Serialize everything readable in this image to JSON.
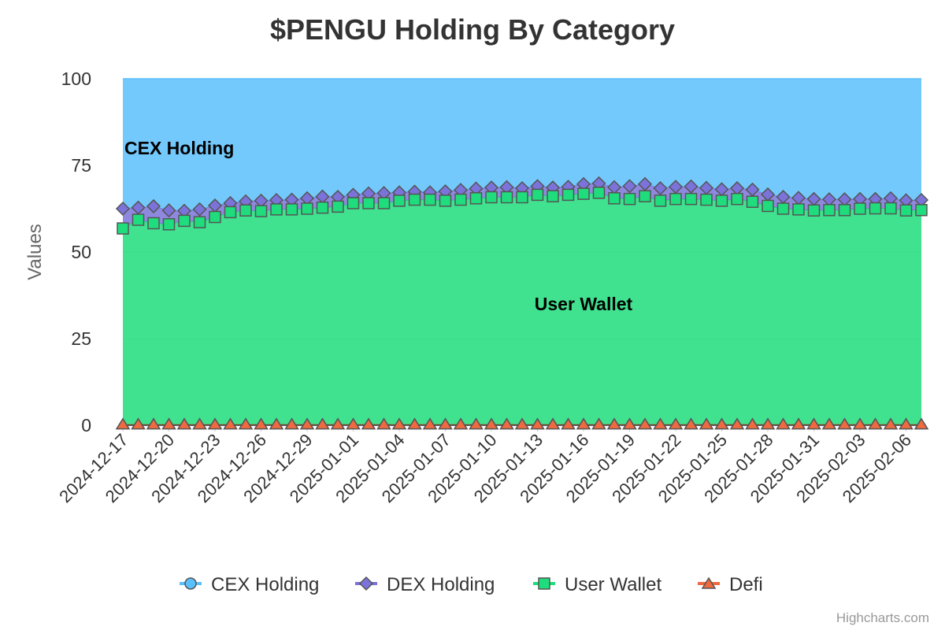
{
  "chart_data": {
    "type": "area",
    "stacking": "percent",
    "title": "$PENGU Holding By Category",
    "ylabel": "Values",
    "ylim": [
      0,
      100
    ],
    "yticks": [
      0,
      25,
      50,
      75,
      100
    ],
    "xlabel_every": 3,
    "dates": [
      "2024-12-17",
      "2024-12-18",
      "2024-12-19",
      "2024-12-20",
      "2024-12-21",
      "2024-12-22",
      "2024-12-23",
      "2024-12-24",
      "2024-12-25",
      "2024-12-26",
      "2024-12-27",
      "2024-12-28",
      "2024-12-29",
      "2024-12-30",
      "2024-12-31",
      "2025-01-01",
      "2025-01-02",
      "2025-01-03",
      "2025-01-04",
      "2025-01-05",
      "2025-01-06",
      "2025-01-07",
      "2025-01-08",
      "2025-01-09",
      "2025-01-10",
      "2025-01-11",
      "2025-01-12",
      "2025-01-13",
      "2025-01-14",
      "2025-01-15",
      "2025-01-16",
      "2025-01-17",
      "2025-01-18",
      "2025-01-19",
      "2025-01-20",
      "2025-01-21",
      "2025-01-22",
      "2025-01-23",
      "2025-01-24",
      "2025-01-25",
      "2025-01-26",
      "2025-01-27",
      "2025-01-28",
      "2025-01-29",
      "2025-01-30",
      "2025-01-31",
      "2025-02-01",
      "2025-02-02",
      "2025-02-03",
      "2025-02-04",
      "2025-02-05",
      "2025-02-06",
      "2025-02-07"
    ],
    "series": [
      {
        "name": "Defi",
        "color": "#ee6a40",
        "marker": "triangle",
        "values": [
          0.3,
          0.3,
          0.3,
          0.3,
          0.3,
          0.3,
          0.3,
          0.3,
          0.3,
          0.3,
          0.3,
          0.3,
          0.3,
          0.3,
          0.3,
          0.3,
          0.3,
          0.3,
          0.3,
          0.3,
          0.3,
          0.3,
          0.3,
          0.3,
          0.3,
          0.3,
          0.3,
          0.3,
          0.3,
          0.3,
          0.3,
          0.3,
          0.3,
          0.3,
          0.3,
          0.3,
          0.3,
          0.3,
          0.3,
          0.3,
          0.3,
          0.3,
          0.3,
          0.3,
          0.3,
          0.3,
          0.3,
          0.3,
          0.3,
          0.3,
          0.3,
          0.3,
          0.3
        ]
      },
      {
        "name": "User Wallet",
        "color": "#1fdd7c",
        "marker": "square",
        "values": [
          56.5,
          59,
          58,
          57.7,
          58.7,
          58.3,
          59.8,
          61.2,
          61.7,
          61.5,
          62,
          62,
          62.2,
          62.5,
          62.8,
          63.8,
          63.8,
          63.8,
          64.5,
          64.8,
          64.8,
          64.5,
          64.8,
          65.2,
          65.5,
          65.5,
          65.5,
          66.2,
          65.8,
          66.2,
          66.5,
          66.8,
          65.2,
          65,
          65.8,
          64.5,
          65,
          65,
          64.8,
          64.5,
          65,
          64.2,
          63,
          62.2,
          62,
          61.7,
          61.8,
          61.8,
          62.2,
          62.3,
          62.3,
          61.7,
          61.8
        ]
      },
      {
        "name": "DEX Holding",
        "color": "#7b73d9",
        "marker": "diamond",
        "values": [
          5.7,
          3.5,
          4.9,
          4,
          2.9,
          3.7,
          3.3,
          2.6,
          2.6,
          3,
          2.7,
          2.8,
          3,
          3.2,
          2.8,
          2.4,
          2.8,
          2.9,
          2.4,
          2.3,
          2.1,
          2.7,
          2.8,
          2.8,
          2.8,
          2.9,
          2.6,
          2.5,
          2.5,
          2.3,
          2.8,
          2.7,
          3.2,
          3.7,
          3.5,
          3.6,
          3.5,
          3.6,
          3.4,
          3.3,
          3.1,
          3.5,
          3.3,
          3.4,
          3.3,
          3.3,
          3.1,
          3.1,
          2.8,
          2.7,
          2.9,
          2.9,
          2.9
        ]
      },
      {
        "name": "CEX Holding",
        "color": "#5bbffb",
        "marker": "circle",
        "values": [
          37.5,
          37.2,
          36.8,
          38,
          38.1,
          37.7,
          36.6,
          35.9,
          35.4,
          35.2,
          35,
          34.9,
          34.5,
          34,
          34.1,
          33.5,
          33.1,
          33,
          32.8,
          32.6,
          32.8,
          32.5,
          32.1,
          31.7,
          31.4,
          31.3,
          31.6,
          31,
          31.4,
          31.2,
          30.4,
          30.2,
          31.3,
          31,
          30.4,
          31.6,
          31.2,
          31.1,
          31.5,
          31.9,
          31.6,
          32,
          33.4,
          34.1,
          34.4,
          34.7,
          34.8,
          34.8,
          34.7,
          34.7,
          34.5,
          35.1,
          35
        ]
      }
    ],
    "annotations": [
      {
        "text": "CEX Holding",
        "series": "CEX Holding"
      },
      {
        "text": "User Wallet",
        "series": "User Wallet"
      }
    ],
    "legend_order": [
      "CEX Holding",
      "DEX Holding",
      "User Wallet",
      "Defi"
    ],
    "legend_placement": "bottom-center",
    "credits": "Highcharts.com"
  }
}
